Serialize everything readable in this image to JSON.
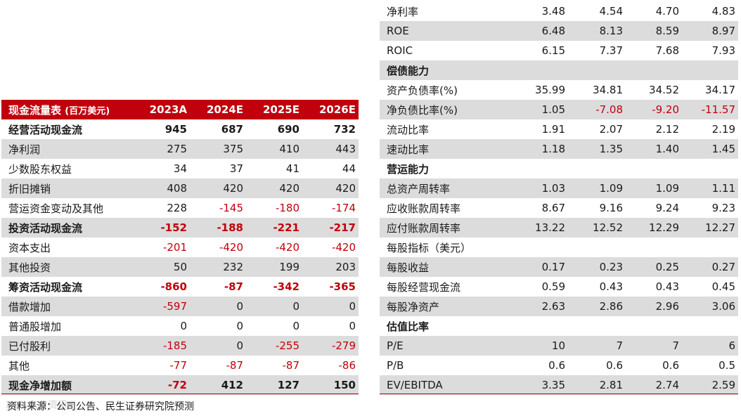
{
  "left_table": {
    "header": {
      "label": "现金流量表",
      "unit": "(百万美元)",
      "years": [
        "2023A",
        "2024E",
        "2025E",
        "2026E"
      ]
    },
    "rows": [
      {
        "label": "经营活动现金流",
        "values": [
          "945",
          "687",
          "690",
          "732"
        ],
        "bold": true,
        "shade": false
      },
      {
        "label": "净利润",
        "values": [
          "275",
          "375",
          "410",
          "443"
        ],
        "bold": false,
        "shade": true
      },
      {
        "label": "少数股东权益",
        "values": [
          "34",
          "37",
          "41",
          "44"
        ],
        "bold": false,
        "shade": false
      },
      {
        "label": "折旧摊销",
        "values": [
          "408",
          "420",
          "420",
          "420"
        ],
        "bold": false,
        "shade": true
      },
      {
        "label": "营运资金变动及其他",
        "values": [
          "228",
          "-145",
          "-180",
          "-174"
        ],
        "bold": false,
        "shade": false
      },
      {
        "label": "投资活动现金流",
        "values": [
          "-152",
          "-188",
          "-221",
          "-217"
        ],
        "bold": true,
        "shade": true
      },
      {
        "label": "资本支出",
        "values": [
          "-201",
          "-420",
          "-420",
          "-420"
        ],
        "bold": false,
        "shade": false
      },
      {
        "label": "其他投资",
        "values": [
          "50",
          "232",
          "199",
          "203"
        ],
        "bold": false,
        "shade": true
      },
      {
        "label": "筹资活动现金流",
        "values": [
          "-860",
          "-87",
          "-342",
          "-365"
        ],
        "bold": true,
        "shade": false
      },
      {
        "label": "借款增加",
        "values": [
          "-597",
          "0",
          "0",
          "0"
        ],
        "bold": false,
        "shade": true
      },
      {
        "label": "普通股增加",
        "values": [
          "0",
          "0",
          "0",
          "0"
        ],
        "bold": false,
        "shade": false
      },
      {
        "label": "已付股利",
        "values": [
          "-185",
          "0",
          "-255",
          "-279"
        ],
        "bold": false,
        "shade": true
      },
      {
        "label": "其他",
        "values": [
          "-77",
          "-87",
          "-87",
          "-86"
        ],
        "bold": false,
        "shade": false
      },
      {
        "label": "现金净增加额",
        "values": [
          "-72",
          "412",
          "127",
          "150"
        ],
        "bold": true,
        "shade": true
      }
    ]
  },
  "right_table": {
    "rows": [
      {
        "label": "净利率",
        "values": [
          "3.48",
          "4.54",
          "4.70",
          "4.83"
        ],
        "bold": false,
        "shade": false
      },
      {
        "label": "ROE",
        "values": [
          "6.48",
          "8.13",
          "8.59",
          "8.97"
        ],
        "bold": false,
        "shade": true
      },
      {
        "label": "ROIC",
        "values": [
          "6.15",
          "7.37",
          "7.68",
          "7.93"
        ],
        "bold": false,
        "shade": false
      },
      {
        "label": "偿债能力",
        "values": [
          "",
          "",
          "",
          ""
        ],
        "bold": true,
        "shade": true
      },
      {
        "label": "资产负债率(%)",
        "values": [
          "35.99",
          "34.81",
          "34.52",
          "34.17"
        ],
        "bold": false,
        "shade": false
      },
      {
        "label": "净负债比率(%)",
        "values": [
          "1.05",
          "-7.08",
          "-9.20",
          "-11.57"
        ],
        "bold": false,
        "shade": true
      },
      {
        "label": "流动比率",
        "values": [
          "1.91",
          "2.07",
          "2.12",
          "2.19"
        ],
        "bold": false,
        "shade": false
      },
      {
        "label": "速动比率",
        "values": [
          "1.18",
          "1.35",
          "1.40",
          "1.45"
        ],
        "bold": false,
        "shade": true
      },
      {
        "label": "营运能力",
        "values": [
          "",
          "",
          "",
          ""
        ],
        "bold": true,
        "shade": false
      },
      {
        "label": "总资产周转率",
        "values": [
          "1.03",
          "1.09",
          "1.09",
          "1.11"
        ],
        "bold": false,
        "shade": true
      },
      {
        "label": "应收账款周转率",
        "values": [
          "8.67",
          "9.16",
          "9.24",
          "9.23"
        ],
        "bold": false,
        "shade": false
      },
      {
        "label": "应付账款周转率",
        "values": [
          "13.22",
          "12.52",
          "12.29",
          "12.27"
        ],
        "bold": false,
        "shade": true
      },
      {
        "label": "每股指标（美元）",
        "values": [
          "",
          "",
          "",
          ""
        ],
        "bold": false,
        "shade": false
      },
      {
        "label": "每股收益",
        "values": [
          "0.17",
          "0.23",
          "0.25",
          "0.27"
        ],
        "bold": false,
        "shade": true
      },
      {
        "label": "每股经营现金流",
        "values": [
          "0.59",
          "0.43",
          "0.43",
          "0.45"
        ],
        "bold": false,
        "shade": false
      },
      {
        "label": "每股净资产",
        "values": [
          "2.63",
          "2.86",
          "2.96",
          "3.06"
        ],
        "bold": false,
        "shade": true
      },
      {
        "label": "估值比率",
        "values": [
          "",
          "",
          "",
          ""
        ],
        "bold": true,
        "shade": false
      },
      {
        "label": "P/E",
        "values": [
          "10",
          "7",
          "7",
          "6"
        ],
        "bold": false,
        "shade": true
      },
      {
        "label": "P/B",
        "values": [
          "0.6",
          "0.6",
          "0.6",
          "0.5"
        ],
        "bold": false,
        "shade": false
      },
      {
        "label": "EV/EBITDA",
        "values": [
          "3.35",
          "2.81",
          "2.74",
          "2.59"
        ],
        "bold": false,
        "shade": true
      }
    ]
  },
  "source": "资料来源：公司公告、民生证券研究院预测",
  "watermark": "X00 东业资讯",
  "colors": {
    "accent": "#c0000c",
    "shade": "#dcdcdc",
    "negative": "#c0000c"
  }
}
